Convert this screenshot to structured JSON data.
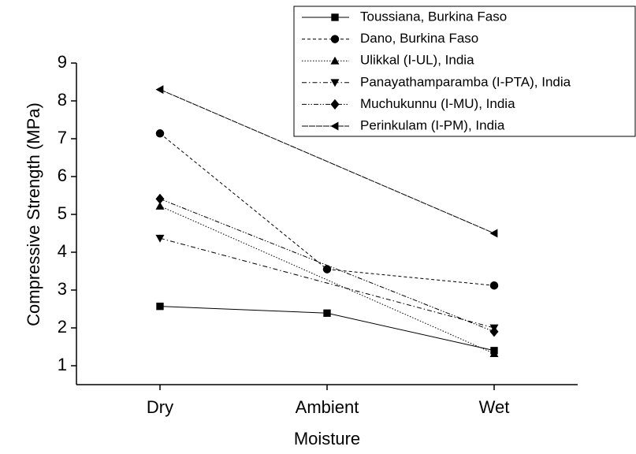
{
  "chart_data": {
    "type": "line",
    "x_label": "Moisture",
    "y_label": "Compressive Strength (MPa)",
    "categories": [
      "Dry",
      "Ambient",
      "Wet"
    ],
    "ylim": [
      0.5,
      9
    ],
    "yticks": [
      1,
      2,
      3,
      4,
      5,
      6,
      7,
      8,
      9
    ],
    "legend": "top-right",
    "series": [
      {
        "name": "Toussiana, Burkina Faso",
        "color": "#000000",
        "marker": "square",
        "dash": "solid",
        "x": [
          "Dry",
          "Ambient",
          "Wet"
        ],
        "values": [
          2.57,
          2.39,
          1.4
        ]
      },
      {
        "name": "Dano, Burkina Faso",
        "color": "#000000",
        "marker": "circle",
        "dash": "dashed",
        "x": [
          "Dry",
          "Ambient",
          "Wet"
        ],
        "values": [
          7.14,
          3.55,
          3.12
        ]
      },
      {
        "name": "Ulikkal (I-UL), India",
        "color": "#000000",
        "marker": "triangle-up",
        "dash": "dotted",
        "x": [
          "Dry",
          "Wet"
        ],
        "values": [
          5.22,
          1.32
        ]
      },
      {
        "name": "Panayathamparamba (I-PTA), India",
        "color": "#000000",
        "marker": "triangle-down",
        "dash": "dash-dot",
        "x": [
          "Dry",
          "Wet"
        ],
        "values": [
          4.37,
          2.0
        ]
      },
      {
        "name": "Muchukunnu (I-MU), India",
        "color": "#000000",
        "marker": "diamond",
        "dash": "dash-dot-dot",
        "x": [
          "Dry",
          "Wet"
        ],
        "values": [
          5.41,
          1.9
        ]
      },
      {
        "name": "Perinkulam (I-PM), India",
        "color": "#000000",
        "marker": "triangle-left",
        "dash": "short-dash",
        "x": [
          "Dry",
          "Wet"
        ],
        "values": [
          8.3,
          4.5
        ]
      }
    ]
  }
}
